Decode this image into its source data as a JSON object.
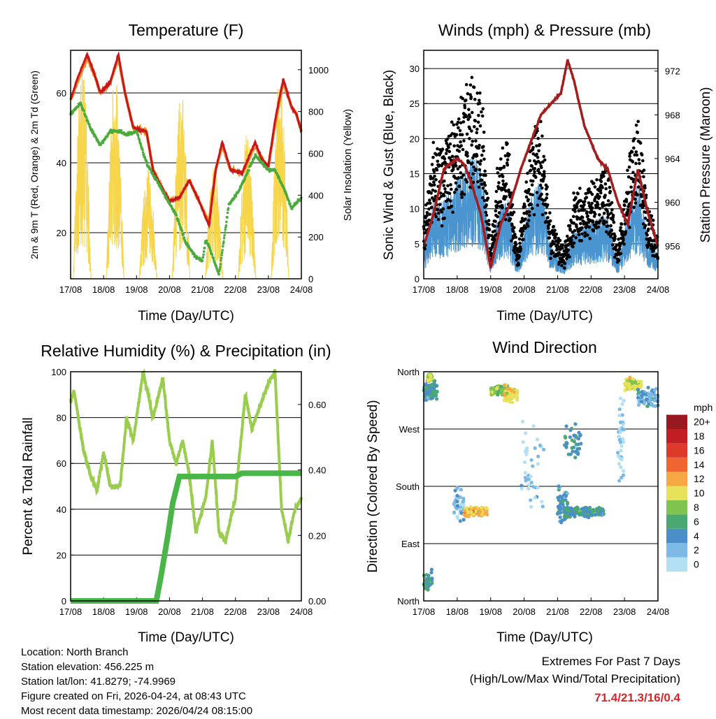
{
  "info": {
    "location": "Location: North Branch",
    "elevation": "Station elevation: 456.225 m",
    "latlon": "Station lat/lon: 41.8279; -74.9969",
    "created": "Figure created on Fri, 2026-04-24, at 08:43 UTC",
    "recent": "Most recent data timestamp: 2026/04/24 08:15:00"
  },
  "extremes": {
    "line1": "Extremes For Past 7 Days",
    "line2": "(High/Low/Max Wind/Total Precipitation)",
    "value": "71.4/21.3/16/0.4",
    "color": "#d7262b"
  },
  "chart_data": [
    {
      "type": "line",
      "title": "Temperature (F)",
      "xlabel": "Time (Day/UTC)",
      "ylabel": "2m & 9m T (Red, Orange) & 2m Td (Green)",
      "y2label": "Solar Insolation (Yellow)",
      "x_ticks": [
        "17/08",
        "18/08",
        "19/08",
        "20/08",
        "21/08",
        "22/08",
        "23/08",
        "24/08"
      ],
      "ylim": [
        6.8,
        72.2
      ],
      "y_ticks": [
        20,
        40,
        60
      ],
      "y2lim": [
        0,
        1093
      ],
      "y2_ticks": [
        0,
        200,
        400,
        600,
        800,
        1000
      ],
      "series": [
        {
          "name": "2m T",
          "color": "#c8161d",
          "points": [
            [
              0,
              58
            ],
            [
              0.2,
              64
            ],
            [
              0.5,
              71
            ],
            [
              0.7,
              66
            ],
            [
              0.9,
              60
            ],
            [
              1.2,
              63
            ],
            [
              1.45,
              71
            ],
            [
              1.65,
              60
            ],
            [
              1.9,
              50
            ],
            [
              2.3,
              49
            ],
            [
              2.5,
              38
            ],
            [
              2.7,
              34
            ],
            [
              3.0,
              29
            ],
            [
              3.3,
              30
            ],
            [
              3.6,
              35
            ],
            [
              3.9,
              29
            ],
            [
              4.2,
              22
            ],
            [
              4.4,
              38
            ],
            [
              4.6,
              46
            ],
            [
              4.85,
              38
            ],
            [
              5.2,
              37
            ],
            [
              5.6,
              46
            ],
            [
              5.8,
              41
            ],
            [
              6.0,
              39
            ],
            [
              6.2,
              52
            ],
            [
              6.45,
              64
            ],
            [
              6.7,
              56
            ],
            [
              6.85,
              54
            ],
            [
              7,
              49
            ]
          ]
        },
        {
          "name": "9m T",
          "color": "#f08a24",
          "points": [
            [
              0,
              58
            ],
            [
              0.2,
              63
            ],
            [
              0.5,
              70
            ],
            [
              0.7,
              66
            ],
            [
              0.9,
              60
            ],
            [
              1.2,
              63
            ],
            [
              1.45,
              70
            ],
            [
              1.65,
              60
            ],
            [
              1.9,
              50
            ],
            [
              2.3,
              49
            ],
            [
              2.5,
              38
            ],
            [
              2.7,
              34
            ],
            [
              3.0,
              29
            ],
            [
              3.3,
              30
            ],
            [
              3.6,
              35
            ],
            [
              3.9,
              29
            ],
            [
              4.2,
              23
            ],
            [
              4.4,
              38
            ],
            [
              4.6,
              45
            ],
            [
              4.85,
              38
            ],
            [
              5.2,
              37
            ],
            [
              5.6,
              45
            ],
            [
              5.8,
              41
            ],
            [
              6.0,
              39
            ],
            [
              6.2,
              51
            ],
            [
              6.45,
              63
            ],
            [
              6.7,
              56
            ],
            [
              6.85,
              54
            ],
            [
              7,
              49
            ]
          ]
        },
        {
          "name": "2m Td",
          "color": "#4aab3c",
          "points": [
            [
              0,
              54
            ],
            [
              0.3,
              57
            ],
            [
              0.6,
              50
            ],
            [
              0.9,
              45
            ],
            [
              1.2,
              49
            ],
            [
              1.5,
              49
            ],
            [
              1.7,
              48
            ],
            [
              2.0,
              49
            ],
            [
              2.3,
              40
            ],
            [
              2.6,
              35
            ],
            [
              2.9,
              30
            ],
            [
              3.2,
              25
            ],
            [
              3.5,
              17
            ],
            [
              3.8,
              13
            ],
            [
              4.0,
              12
            ],
            [
              4.1,
              18
            ],
            [
              4.2,
              16
            ],
            [
              4.5,
              8
            ],
            [
              4.8,
              28
            ],
            [
              5.1,
              32
            ],
            [
              5.6,
              42
            ],
            [
              6.0,
              38
            ],
            [
              6.2,
              38
            ],
            [
              6.5,
              32
            ],
            [
              6.7,
              27
            ],
            [
              7,
              30
            ]
          ]
        },
        {
          "name": "Solar Insolation",
          "color": "#f7d54a",
          "axis": "right",
          "daily_peak": [
            1050,
            1000,
            550,
            900,
            550,
            700,
            1000
          ]
        }
      ]
    },
    {
      "type": "scatter",
      "title": "Winds (mph) & Pressure (mb)",
      "xlabel": "Time (Day/UTC)",
      "ylabel": "Sonic Wind & Gust (Blue, Black)",
      "y2label": "Station Pressure (Maroon)",
      "x_ticks": [
        "17/08",
        "18/08",
        "19/08",
        "20/08",
        "21/08",
        "22/08",
        "23/08",
        "24/08"
      ],
      "ylim": [
        0,
        32.6
      ],
      "y_ticks": [
        0,
        5,
        10,
        15,
        20,
        25,
        30
      ],
      "y2lim": [
        953,
        973.9
      ],
      "y2_ticks": [
        956,
        960,
        964,
        968,
        972
      ],
      "series": [
        {
          "name": "Sonic Wind",
          "color": "#4a94d0",
          "points": [
            [
              0,
              4
            ],
            [
              0.3,
              10
            ],
            [
              0.5,
              9
            ],
            [
              1,
              12
            ],
            [
              1.5,
              15
            ],
            [
              1.8,
              12
            ],
            [
              2,
              2
            ],
            [
              2.2,
              8
            ],
            [
              2.5,
              10
            ],
            [
              2.8,
              2
            ],
            [
              3.2,
              10
            ],
            [
              3.5,
              12
            ],
            [
              3.8,
              4
            ],
            [
              4.2,
              2
            ],
            [
              4.5,
              6
            ],
            [
              5,
              7
            ],
            [
              5.5,
              8
            ],
            [
              5.8,
              2
            ],
            [
              6.2,
              10
            ],
            [
              6.4,
              12
            ],
            [
              6.7,
              5
            ],
            [
              7,
              3
            ]
          ]
        },
        {
          "name": "Gust",
          "color": "#000000",
          "gust_factor": 1.8
        },
        {
          "name": "Station Pressure",
          "color": "#a51c1c",
          "axis": "right",
          "points": [
            [
              0,
              956
            ],
            [
              0.3,
              959
            ],
            [
              0.6,
              963
            ],
            [
              1.0,
              964
            ],
            [
              1.2,
              963.5
            ],
            [
              1.4,
              962
            ],
            [
              1.7,
              959
            ],
            [
              2.0,
              954
            ],
            [
              2.3,
              958
            ],
            [
              2.6,
              960
            ],
            [
              2.9,
              963
            ],
            [
              3.2,
              965.5
            ],
            [
              3.5,
              968
            ],
            [
              3.8,
              969
            ],
            [
              4.1,
              970
            ],
            [
              4.3,
              973
            ],
            [
              4.5,
              971
            ],
            [
              4.8,
              967
            ],
            [
              5.2,
              964
            ],
            [
              5.5,
              963
            ],
            [
              5.8,
              960
            ],
            [
              6.1,
              958
            ],
            [
              6.4,
              963
            ],
            [
              6.7,
              959
            ],
            [
              7,
              956
            ]
          ]
        }
      ]
    },
    {
      "type": "line",
      "title": "Relative Humidity (%) & Precipitation (in)",
      "xlabel": "Time (Day/UTC)",
      "ylabel": "Percent & Total Rainfall",
      "x_ticks": [
        "17/08",
        "18/08",
        "19/08",
        "20/08",
        "21/08",
        "22/08",
        "23/08",
        "24/08"
      ],
      "ylim": [
        0,
        100
      ],
      "y_ticks": [
        0,
        20,
        40,
        60,
        80,
        100
      ],
      "y2lim": [
        0,
        0.7
      ],
      "y2_ticks": [
        "0.00",
        "0.20",
        "0.40",
        "0.60"
      ],
      "series": [
        {
          "name": "Relative Humidity",
          "color": "#9acd4e",
          "points": [
            [
              0,
              87
            ],
            [
              0.1,
              92
            ],
            [
              0.4,
              65
            ],
            [
              0.6,
              55
            ],
            [
              0.8,
              48
            ],
            [
              1.0,
              65
            ],
            [
              1.2,
              50
            ],
            [
              1.5,
              50
            ],
            [
              1.7,
              80
            ],
            [
              1.9,
              70
            ],
            [
              2.2,
              100
            ],
            [
              2.5,
              80
            ],
            [
              2.8,
              97
            ],
            [
              3.0,
              70
            ],
            [
              3.2,
              60
            ],
            [
              3.4,
              70
            ],
            [
              3.6,
              55
            ],
            [
              3.8,
              30
            ],
            [
              4.1,
              45
            ],
            [
              4.3,
              70
            ],
            [
              4.5,
              30
            ],
            [
              4.7,
              26
            ],
            [
              5.0,
              45
            ],
            [
              5.3,
              90
            ],
            [
              5.5,
              75
            ],
            [
              6.0,
              95
            ],
            [
              6.2,
              100
            ],
            [
              6.4,
              40
            ],
            [
              6.6,
              26
            ],
            [
              6.8,
              40
            ],
            [
              7,
              45
            ]
          ]
        },
        {
          "name": "Total Precipitation",
          "color": "#4ab548",
          "axis": "right",
          "points": [
            [
              0,
              0
            ],
            [
              2.6,
              0
            ],
            [
              2.75,
              0.08
            ],
            [
              2.95,
              0.2
            ],
            [
              3.1,
              0.3
            ],
            [
              3.3,
              0.38
            ],
            [
              5.0,
              0.38
            ],
            [
              5.2,
              0.39
            ],
            [
              7,
              0.39
            ]
          ]
        }
      ]
    },
    {
      "type": "scatter",
      "title": "Wind Direction",
      "xlabel": "Time (Day/UTC)",
      "ylabel": "Direction (Colored By Speed)",
      "x_ticks": [
        "17/08",
        "18/08",
        "19/08",
        "20/08",
        "21/08",
        "22/08",
        "23/08",
        "24/08"
      ],
      "ylim": [
        0,
        360
      ],
      "y_ticks": [
        {
          "v": 0,
          "label": "North"
        },
        {
          "v": 90,
          "label": "East"
        },
        {
          "v": 180,
          "label": "South"
        },
        {
          "v": 270,
          "label": "West"
        },
        {
          "v": 360,
          "label": "North"
        }
      ],
      "legend": {
        "title": "mph",
        "placement": "right",
        "bins": [
          {
            "label": "0",
            "color": "#b3e0f5"
          },
          {
            "label": "2",
            "color": "#7cb9e5"
          },
          {
            "label": "4",
            "color": "#4a8fc7"
          },
          {
            "label": "6",
            "color": "#4aa872"
          },
          {
            "label": "8",
            "color": "#7ec44e"
          },
          {
            "label": "10",
            "color": "#e8e15a"
          },
          {
            "label": "12",
            "color": "#f5a945"
          },
          {
            "label": "14",
            "color": "#f0652f"
          },
          {
            "label": "16",
            "color": "#de3a2a"
          },
          {
            "label": "18",
            "color": "#c01e22"
          },
          {
            "label": "20+",
            "color": "#971b1e"
          }
        ]
      },
      "clusters": [
        {
          "day": [
            0,
            0.4
          ],
          "dir": 330,
          "spread": 22,
          "speed": 6,
          "n": 90
        },
        {
          "day": [
            0.1,
            0.25
          ],
          "dir": 350,
          "spread": 8,
          "speed": 10,
          "n": 25
        },
        {
          "day": [
            0,
            0.25
          ],
          "dir": 30,
          "spread": 25,
          "speed": 6,
          "n": 30
        },
        {
          "day": [
            0.9,
            1.2
          ],
          "dir": 150,
          "spread": 45,
          "speed": 3,
          "n": 40
        },
        {
          "day": [
            1.2,
            1.9
          ],
          "dir": 140,
          "spread": 9,
          "speed": 12,
          "n": 150
        },
        {
          "day": [
            2.0,
            2.5
          ],
          "dir": 330,
          "spread": 12,
          "speed": 9,
          "n": 120
        },
        {
          "day": [
            2.4,
            2.8
          ],
          "dir": 325,
          "spread": 18,
          "speed": 11,
          "n": 100
        },
        {
          "day": [
            2.9,
            3.6
          ],
          "dir": 200,
          "spread": 120,
          "speed": 2,
          "n": 40
        },
        {
          "day": [
            4.0,
            4.3
          ],
          "dir": 150,
          "spread": 40,
          "speed": 5,
          "n": 70
        },
        {
          "day": [
            4.2,
            5.4
          ],
          "dir": 140,
          "spread": 10,
          "speed": 6,
          "n": 200
        },
        {
          "day": [
            4.2,
            4.7
          ],
          "dir": 250,
          "spread": 40,
          "speed": 6,
          "n": 40
        },
        {
          "day": [
            5.8,
            6.0
          ],
          "dir": 260,
          "spread": 100,
          "speed": 2,
          "n": 40
        },
        {
          "day": [
            6.0,
            6.5
          ],
          "dir": 340,
          "spread": 12,
          "speed": 10,
          "n": 100
        },
        {
          "day": [
            6.4,
            7.0
          ],
          "dir": 320,
          "spread": 20,
          "speed": 4,
          "n": 90
        }
      ]
    }
  ]
}
